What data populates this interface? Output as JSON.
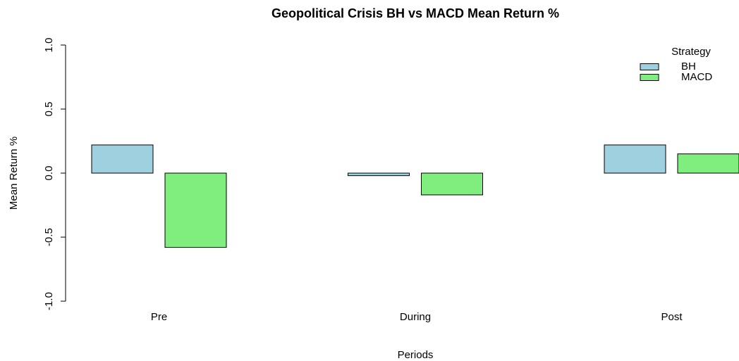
{
  "chart_data": {
    "type": "bar",
    "title": "Geopolitical Crisis BH vs MACD Mean Return %",
    "x_label": "Periods",
    "y_label": "Mean Return %",
    "legend_title": "Strategy",
    "legend_position": "top-right",
    "categories": [
      "Pre",
      "During",
      "Post"
    ],
    "series": [
      {
        "name": "BH",
        "color": "#9fd0e0",
        "values": [
          0.22,
          -0.02,
          0.22
        ]
      },
      {
        "name": "MACD",
        "color": "#80ee7e",
        "values": [
          -0.58,
          -0.17,
          0.15
        ]
      }
    ],
    "ylim": [
      -1.0,
      1.0
    ],
    "yticks": [
      {
        "value": -1.0,
        "label": "-1.0"
      },
      -0.5,
      {
        "value": 0.0,
        "label": "0.0"
      },
      0.5,
      {
        "value": 1.0,
        "label": "1.0"
      }
    ]
  }
}
